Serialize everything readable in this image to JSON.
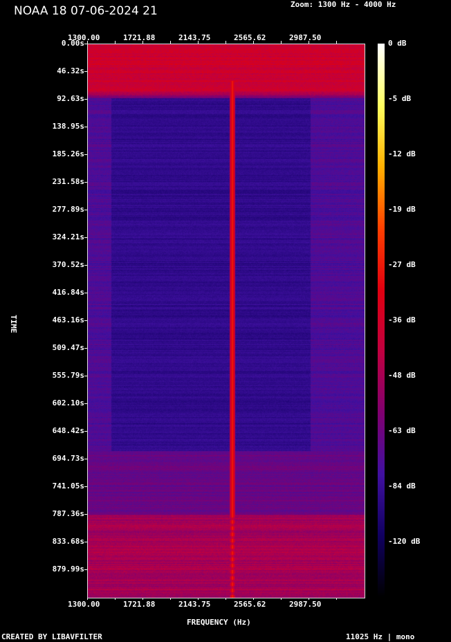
{
  "title": "NOAA 18 07-06-2024 21",
  "zoom_label": "Zoom: 1300 Hz - 4000 Hz",
  "footer_left": "CREATED BY LIBAVFILTER",
  "footer_right": "11025 Hz | mono",
  "chart_data": {
    "type": "heatmap",
    "title": "NOAA 18 07-06-2024 21",
    "xlabel": "FREQUENCY (Hz)",
    "ylabel": "TIME",
    "x_tick_labels": [
      "1300.00",
      "1721.88",
      "2143.75",
      "2565.62",
      "2987.50"
    ],
    "y_tick_labels": [
      "0.00s",
      "46.32s",
      "92.63s",
      "138.95s",
      "185.26s",
      "231.58s",
      "277.89s",
      "324.21s",
      "370.52s",
      "416.84s",
      "463.16s",
      "509.47s",
      "555.79s",
      "602.10s",
      "648.42s",
      "694.73s",
      "741.05s",
      "787.36s",
      "833.68s",
      "879.99s"
    ],
    "xlim": [
      1300,
      3409.4
    ],
    "ylim": [
      0,
      926.3
    ],
    "colorbar": {
      "labels": [
        "0 dB",
        "-5 dB",
        "-12 dB",
        "-19 dB",
        "-27 dB",
        "-36 dB",
        "-48 dB",
        "-63 dB",
        "-84 dB",
        "-120 dB"
      ],
      "colormap": [
        "#ffffff",
        "#ffff60",
        "#ffb000",
        "#ff4000",
        "#e00010",
        "#c00040",
        "#800070",
        "#4010a0",
        "#100060",
        "#000000"
      ]
    },
    "features": {
      "carrier_frequency_hz": 2400,
      "carrier_level_db": -22,
      "background_level_db": -60,
      "noise_band_hz": [
        1400,
        3100
      ],
      "noise_band_level_db": -70,
      "strong_signal_time_s": [
        0,
        90
      ],
      "strong_signal_level_db": -33,
      "late_strong_time_s": [
        787,
        926
      ],
      "late_strong_level_db": -38
    }
  }
}
